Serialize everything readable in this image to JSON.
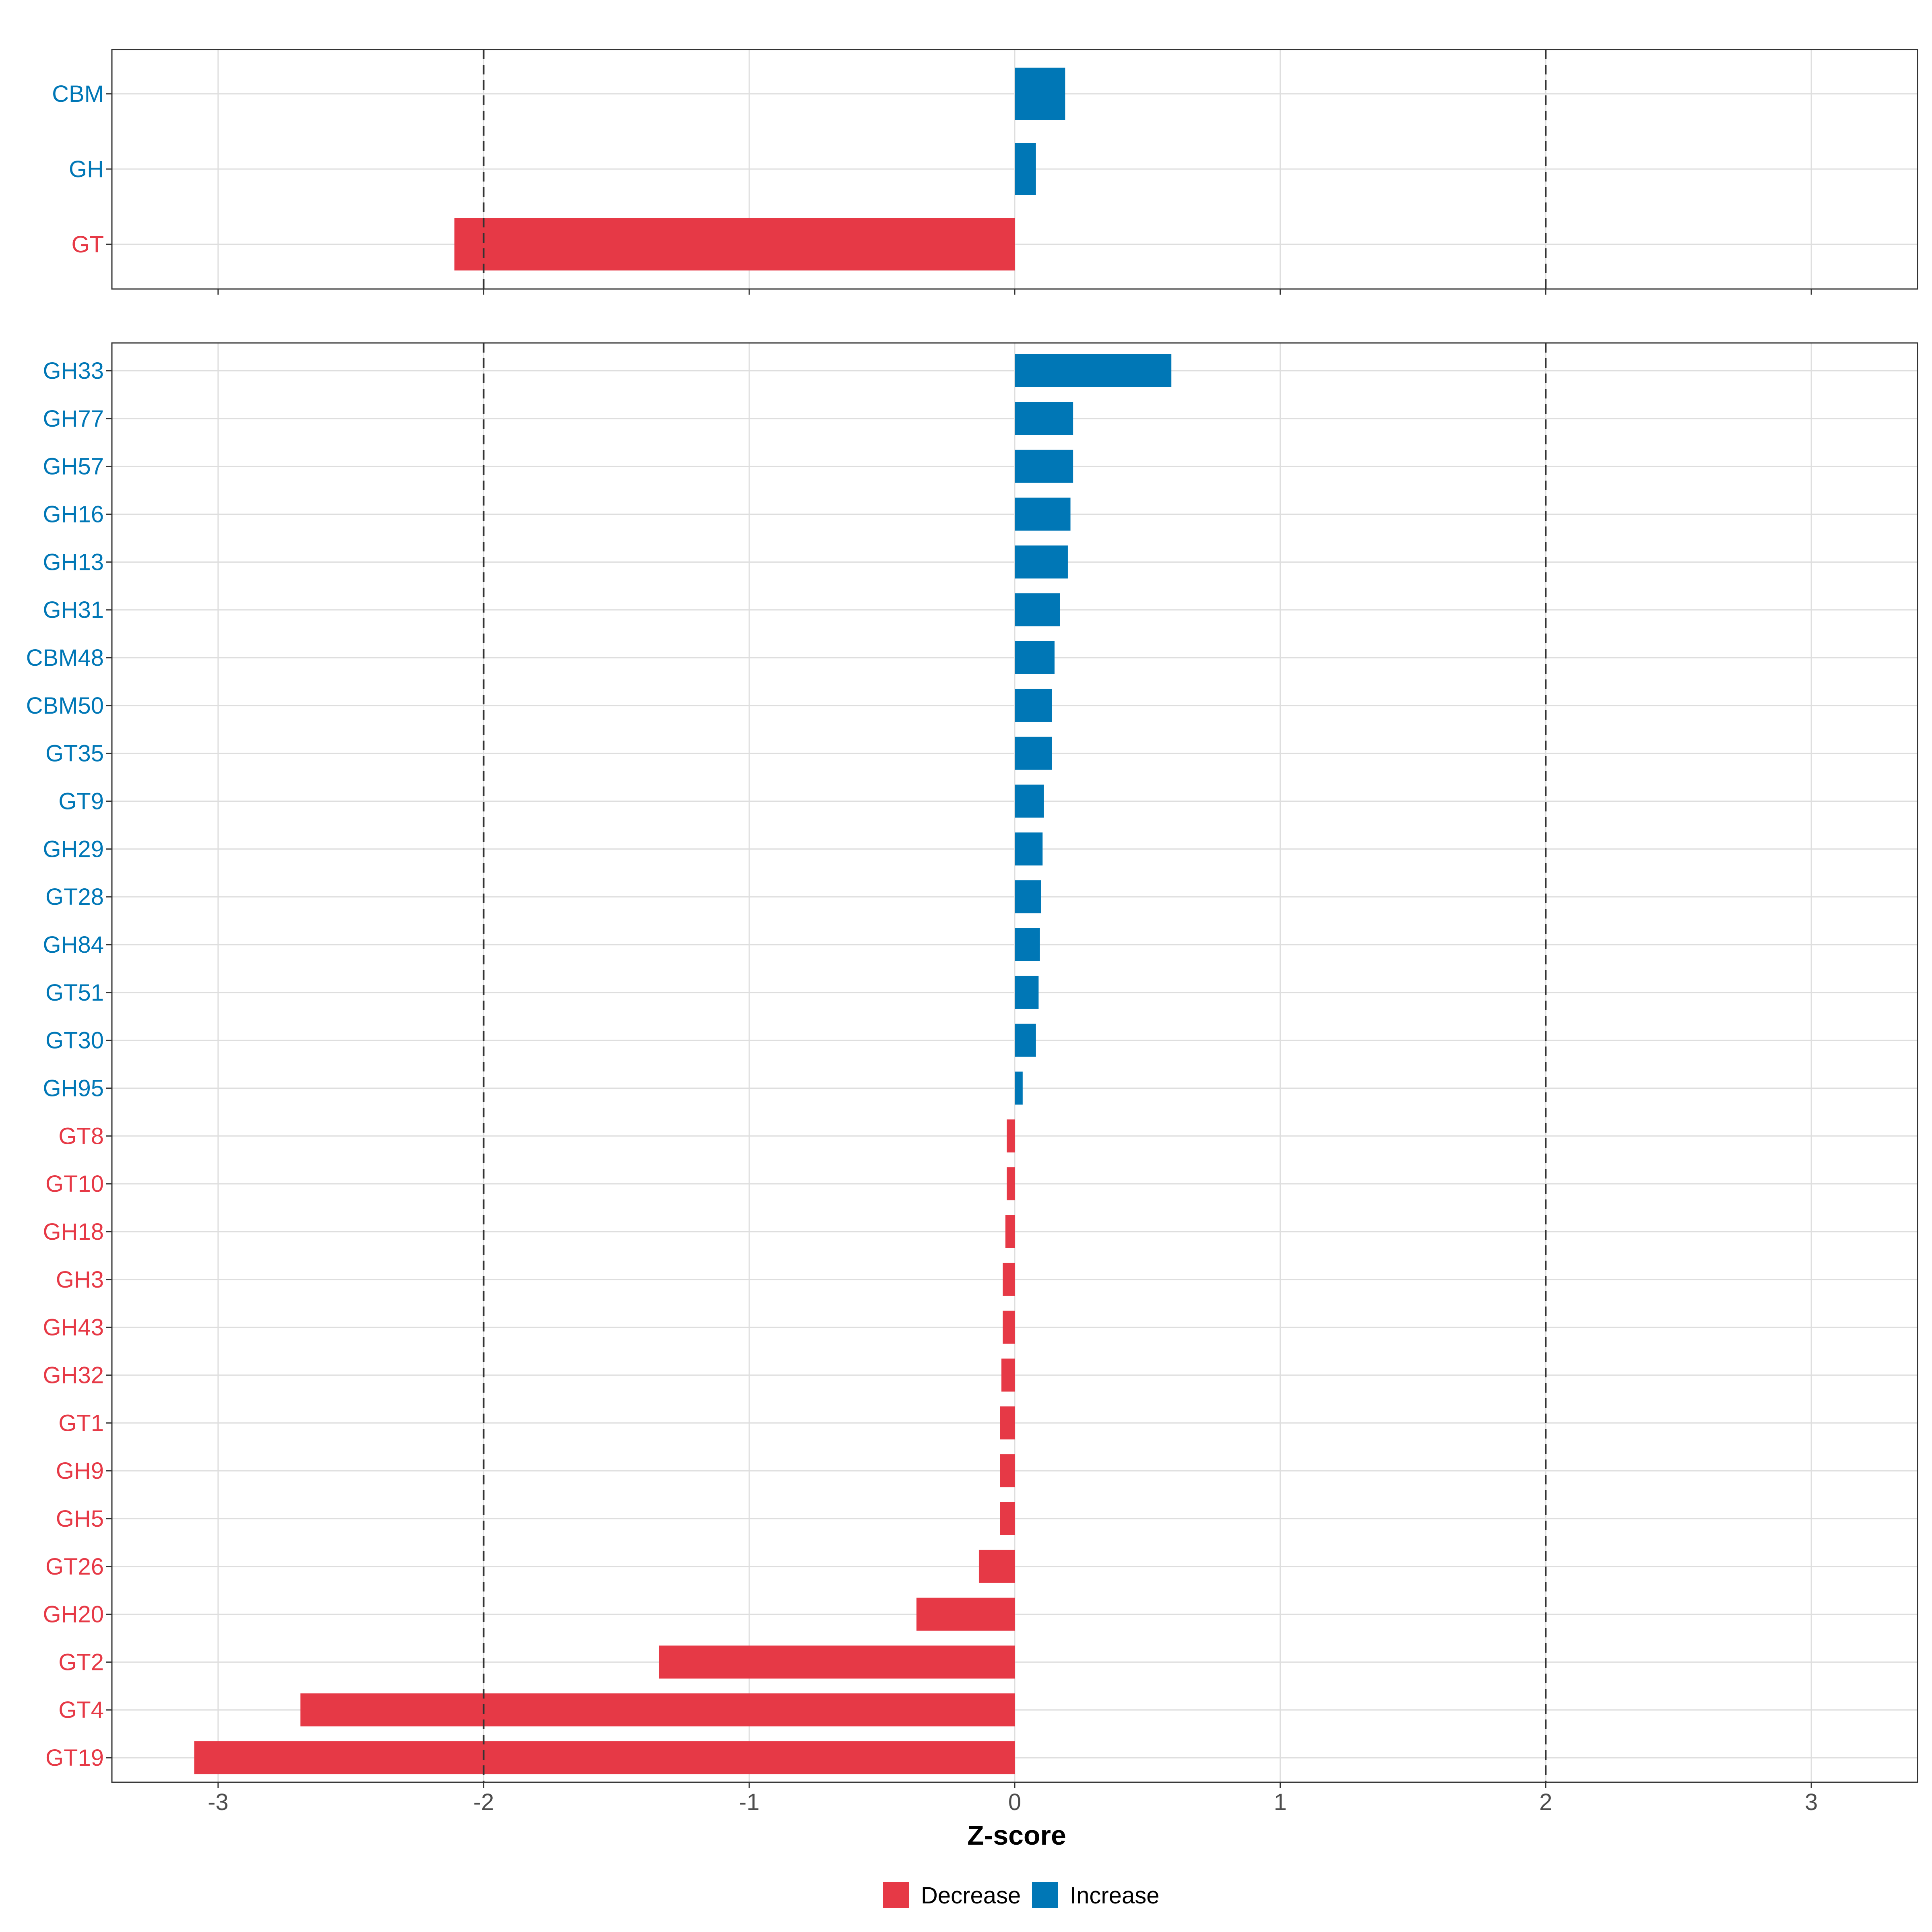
{
  "chart_data": {
    "type": "bar",
    "orientation": "horizontal",
    "xlabel": "Z-score",
    "xlim": [
      -3.4,
      3.4
    ],
    "xticks": [
      -3,
      -2,
      -1,
      0,
      1,
      2,
      3
    ],
    "tick_labels": [
      "-3",
      "-2",
      "-1",
      "0",
      "1",
      "2",
      "3"
    ],
    "threshold_lines": [
      -2,
      2
    ],
    "colors": {
      "Decrease": "#E63946",
      "Increase": "#0077B6"
    },
    "legend": {
      "position": "bottom",
      "items": [
        "Decrease",
        "Increase"
      ]
    },
    "panels": [
      {
        "name": "family",
        "categories": [
          "CBM",
          "GH",
          "GT"
        ],
        "values": [
          0.19,
          0.08,
          -2.11
        ]
      },
      {
        "name": "subfamily",
        "categories": [
          "GH33",
          "GH77",
          "GH57",
          "GH16",
          "GH13",
          "GH31",
          "CBM48",
          "CBM50",
          "GT35",
          "GT9",
          "GH29",
          "GT28",
          "GH84",
          "GT51",
          "GT30",
          "GH95",
          "GT8",
          "GT10",
          "GH18",
          "GH3",
          "GH43",
          "GH32",
          "GT1",
          "GH9",
          "GH5",
          "GT26",
          "GH20",
          "GT2",
          "GT4",
          "GT19"
        ],
        "values": [
          0.59,
          0.22,
          0.22,
          0.21,
          0.2,
          0.17,
          0.15,
          0.14,
          0.14,
          0.11,
          0.105,
          0.1,
          0.095,
          0.09,
          0.08,
          0.03,
          -0.03,
          -0.03,
          -0.035,
          -0.045,
          -0.045,
          -0.05,
          -0.055,
          -0.055,
          -0.055,
          -0.135,
          -0.37,
          -1.34,
          -2.69,
          -3.09
        ]
      }
    ]
  }
}
